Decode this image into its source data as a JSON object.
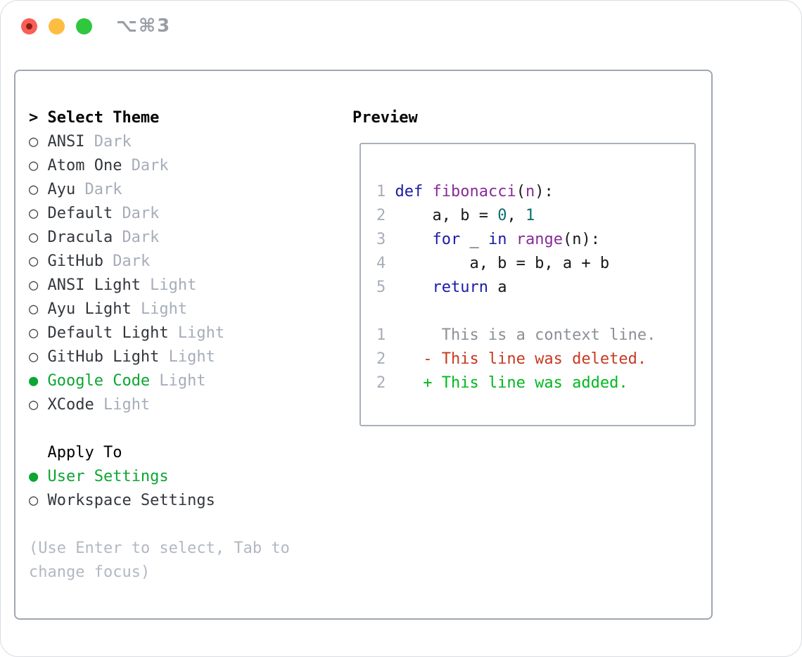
{
  "window": {
    "title": "⌥⌘3",
    "traffic_lights": [
      "close",
      "minimize",
      "zoom"
    ]
  },
  "colors": {
    "accent_green": "#0ca633",
    "diff_added_green": "#00b81f",
    "diff_deleted_red": "#c63a21",
    "diff_context_gray": "#8b9097",
    "syntax_keyword_blue": "#1b1aa7",
    "syntax_title_purple": "#862c96",
    "syntax_number_teal": "#0a6e6e",
    "muted_gray": "#a6adb9"
  },
  "theme_selector": {
    "header": {
      "marker": ">",
      "label": "Select Theme"
    },
    "themes": [
      {
        "marker": "○",
        "name": "ANSI",
        "variant": "Dark",
        "selected": false
      },
      {
        "marker": "○",
        "name": "Atom One",
        "variant": "Dark",
        "selected": false
      },
      {
        "marker": "○",
        "name": "Ayu",
        "variant": "Dark",
        "selected": false
      },
      {
        "marker": "○",
        "name": "Default",
        "variant": "Dark",
        "selected": false
      },
      {
        "marker": "○",
        "name": "Dracula",
        "variant": "Dark",
        "selected": false
      },
      {
        "marker": "○",
        "name": "GitHub",
        "variant": "Dark",
        "selected": false
      },
      {
        "marker": "○",
        "name": "ANSI Light",
        "variant": "Light",
        "selected": false
      },
      {
        "marker": "○",
        "name": "Ayu Light",
        "variant": "Light",
        "selected": false
      },
      {
        "marker": "○",
        "name": "Default Light",
        "variant": "Light",
        "selected": false
      },
      {
        "marker": "○",
        "name": "GitHub Light",
        "variant": "Light",
        "selected": false
      },
      {
        "marker": "●",
        "name": "Google Code",
        "variant": "Light",
        "selected": true
      },
      {
        "marker": "○",
        "name": "XCode",
        "variant": "Light",
        "selected": false
      }
    ],
    "apply_to": {
      "label": "Apply To",
      "options": [
        {
          "marker": "●",
          "name": "User Settings",
          "selected": true
        },
        {
          "marker": "○",
          "name": "Workspace Settings",
          "selected": false
        }
      ]
    },
    "hint": "(Use Enter to select, Tab to change focus)"
  },
  "preview": {
    "label": "Preview",
    "code_lines": [
      {
        "num": "1",
        "segments": [
          {
            "t": "def",
            "c": "kw"
          },
          {
            "t": " ",
            "c": "p"
          },
          {
            "t": "fibonacci",
            "c": "fn"
          },
          {
            "t": "(",
            "c": "p"
          },
          {
            "t": "n",
            "c": "fn"
          },
          {
            "t": "):",
            "c": "p"
          }
        ]
      },
      {
        "num": "2",
        "segments": [
          {
            "t": "    a, b = ",
            "c": "p"
          },
          {
            "t": "0",
            "c": "num"
          },
          {
            "t": ", ",
            "c": "p"
          },
          {
            "t": "1",
            "c": "num"
          }
        ]
      },
      {
        "num": "3",
        "segments": [
          {
            "t": "    ",
            "c": "p"
          },
          {
            "t": "for",
            "c": "kw"
          },
          {
            "t": " _ ",
            "c": "p"
          },
          {
            "t": "in",
            "c": "kw"
          },
          {
            "t": " ",
            "c": "p"
          },
          {
            "t": "range",
            "c": "fn"
          },
          {
            "t": "(n):",
            "c": "p"
          }
        ]
      },
      {
        "num": "4",
        "segments": [
          {
            "t": "        a, b = b, a + b",
            "c": "p"
          }
        ]
      },
      {
        "num": "5",
        "segments": [
          {
            "t": "    ",
            "c": "p"
          },
          {
            "t": "return",
            "c": "kw"
          },
          {
            "t": " a",
            "c": "p"
          }
        ]
      }
    ],
    "diff_lines": [
      {
        "num": "1",
        "type": "context",
        "content": "     This is a context line."
      },
      {
        "num": "2",
        "type": "deleted",
        "content": "   - This line was deleted."
      },
      {
        "num": "2",
        "type": "added",
        "content": "   + This line was added."
      }
    ]
  }
}
